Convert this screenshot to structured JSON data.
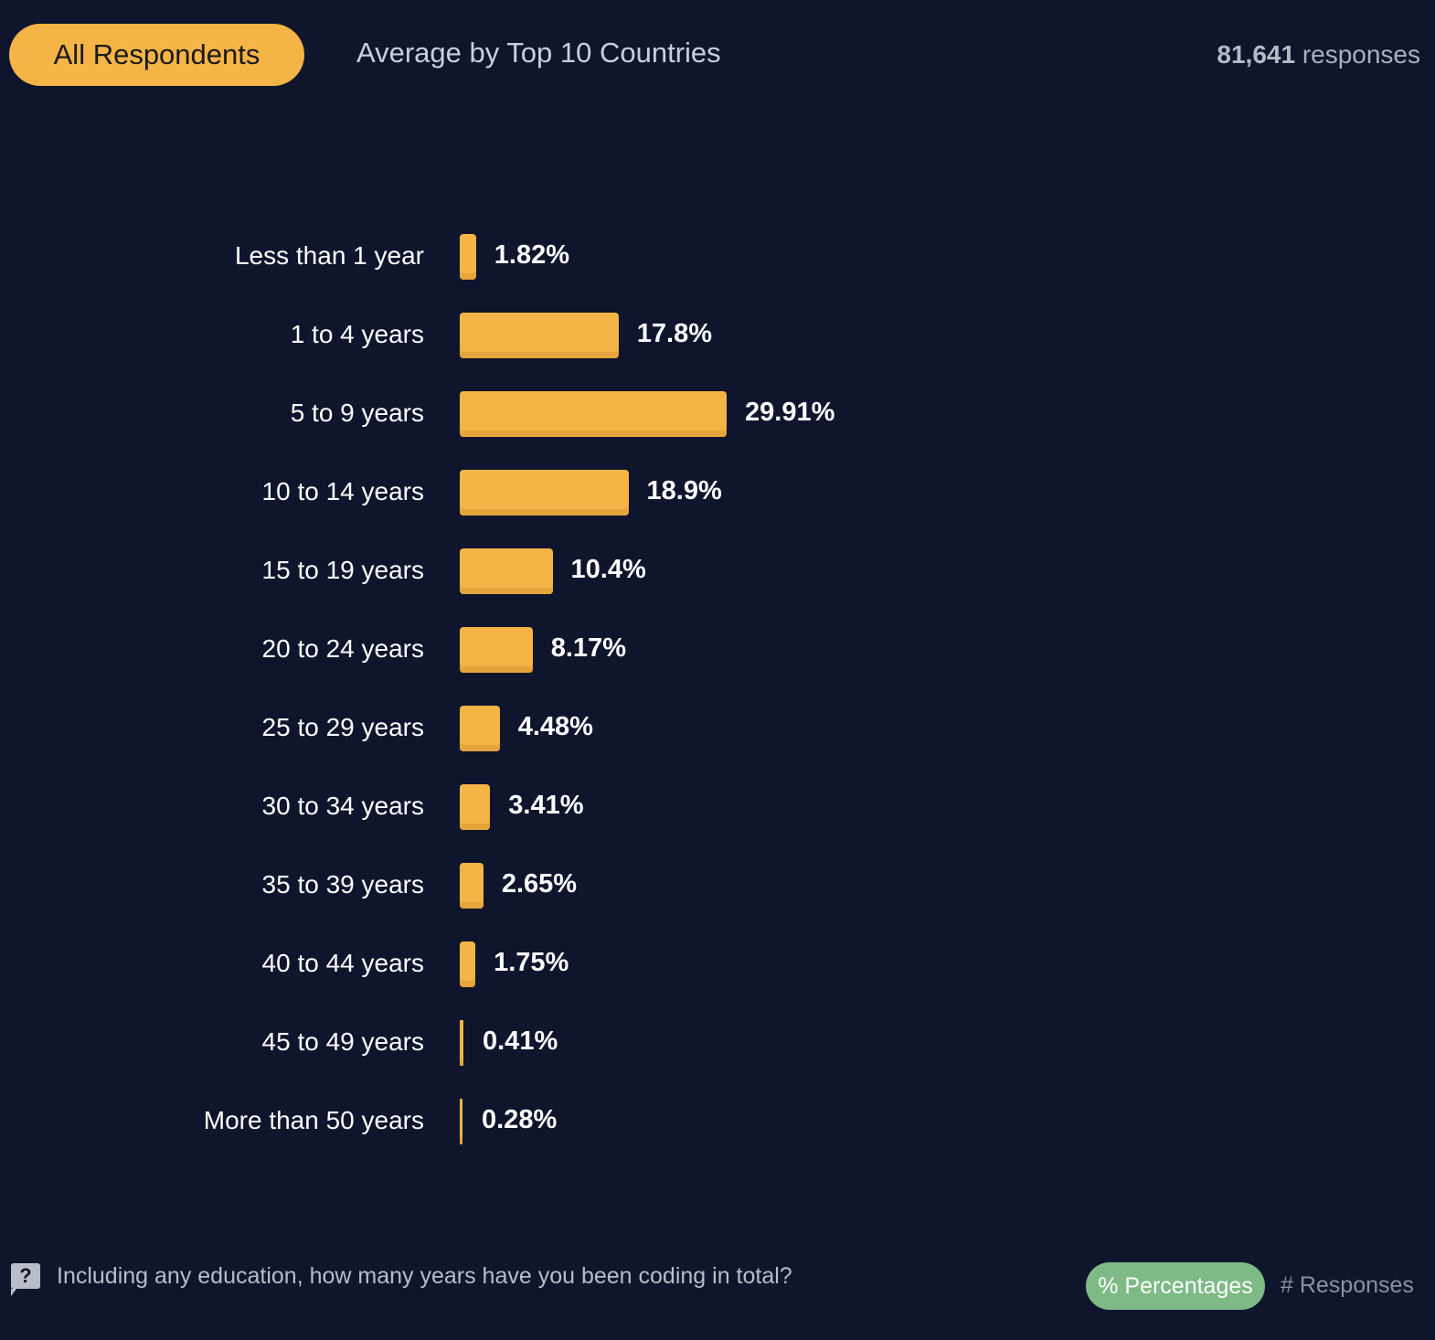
{
  "tabs": {
    "active": "All Respondents",
    "other": "Average by Top 10 Countries"
  },
  "responses": {
    "count": "81,641",
    "label": "responses"
  },
  "footer": {
    "question": "Including any education, how many years have you been coding in total?",
    "question_icon": "?",
    "percentages_label": "% Percentages",
    "responses_label": "# Responses"
  },
  "colors": {
    "bar": "#f4b446",
    "background": "#0f152c",
    "toggle_active": "#7dba85"
  },
  "chart_data": {
    "type": "bar",
    "orientation": "horizontal",
    "categories": [
      "Less than 1 year",
      "1 to 4 years",
      "5 to 9 years",
      "10 to 14 years",
      "15 to 19 years",
      "20 to 24 years",
      "25 to 29 years",
      "30 to 34 years",
      "35 to 39 years",
      "40 to 44 years",
      "45 to 49 years",
      "More than 50 years"
    ],
    "values": [
      1.82,
      17.8,
      29.91,
      18.9,
      10.4,
      8.17,
      4.48,
      3.41,
      2.65,
      1.75,
      0.41,
      0.28
    ],
    "labels": [
      "1.82%",
      "17.8%",
      "29.91%",
      "18.9%",
      "10.4%",
      "8.17%",
      "4.48%",
      "3.41%",
      "2.65%",
      "1.75%",
      "0.41%",
      "0.28%"
    ],
    "xlim": [
      0,
      29.91
    ],
    "unit": "%"
  }
}
